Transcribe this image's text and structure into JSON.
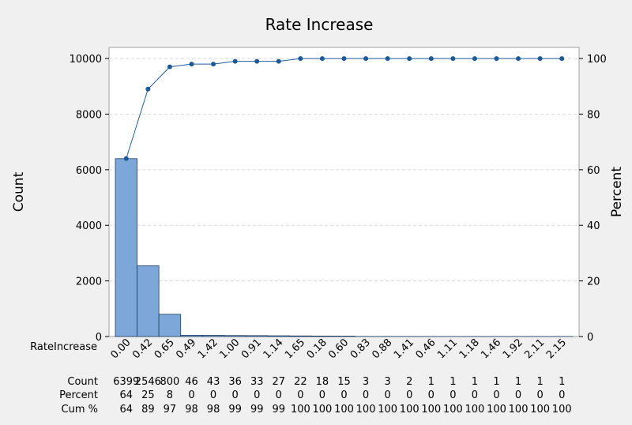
{
  "chart_data": {
    "type": "bar",
    "title": "Rate Increase",
    "xlabel": "RateIncrease",
    "ylabel": "Count",
    "y2label": "Percent",
    "ylim": [
      0,
      10400
    ],
    "y2lim": [
      0,
      104
    ],
    "yticks": [
      0,
      2000,
      4000,
      6000,
      8000,
      10000
    ],
    "y2ticks": [
      0,
      20,
      40,
      60,
      80,
      100
    ],
    "grid": true,
    "categories": [
      "0.00",
      "0.42",
      "0.65",
      "0.49",
      "1.42",
      "1.00",
      "0.91",
      "1.14",
      "1.65",
      "0.18",
      "0.60",
      "0.83",
      "0.88",
      "1.41",
      "0.46",
      "1.11",
      "1.18",
      "1.46",
      "1.92",
      "2.11",
      "2.15"
    ],
    "series": [
      {
        "values": [
          6399,
          2546,
          800,
          46,
          43,
          36,
          33,
          27,
          22,
          18,
          15,
          3,
          3,
          2,
          1,
          1,
          1,
          1,
          1,
          1,
          1
        ]
      }
    ],
    "cumulative_percent": [
      64,
      89,
      97,
      98,
      98,
      99,
      99,
      99,
      100,
      100,
      100,
      100,
      100,
      100,
      100,
      100,
      100,
      100,
      100,
      100,
      100
    ],
    "table": {
      "row_labels": {
        "count": "Count",
        "percent": "Percent",
        "cum": "Cum %"
      },
      "count": [
        "6399",
        "2546",
        "800",
        "46",
        "43",
        "36",
        "33",
        "27",
        "22",
        "18",
        "15",
        "3",
        "3",
        "2",
        "1",
        "1",
        "1",
        "1",
        "1",
        "1",
        "1"
      ],
      "percent": [
        "64",
        "25",
        "8",
        "0",
        "0",
        "0",
        "0",
        "0",
        "0",
        "0",
        "0",
        "0",
        "0",
        "0",
        "0",
        "0",
        "0",
        "0",
        "0",
        "0",
        "0"
      ],
      "cum": [
        "64",
        "89",
        "97",
        "98",
        "98",
        "99",
        "99",
        "99",
        "100",
        "100",
        "100",
        "100",
        "100",
        "100",
        "100",
        "100",
        "100",
        "100",
        "100",
        "100",
        "100"
      ]
    },
    "colors": {
      "bar_fill": "#7da7d9",
      "bar_stroke": "#1f3f66",
      "line": "#1f5fa0",
      "marker": "#1a5a9a",
      "plot_bg": "#ffffff",
      "grid": "#d9d9d9"
    }
  }
}
